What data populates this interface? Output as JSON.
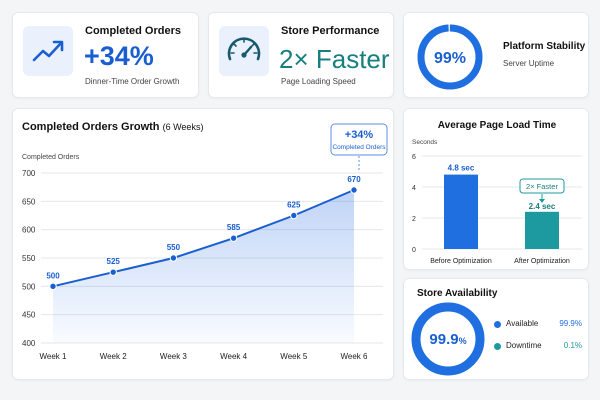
{
  "kpis": {
    "completed": {
      "title": "Completed Orders",
      "value": "+34%",
      "sub": "Dinner-Time Order Growth",
      "icon": "trending-up-icon"
    },
    "performance": {
      "title": "Store Performance",
      "value": "2× Faster",
      "sub": "Page Loading Speed",
      "icon": "speedometer-icon"
    },
    "stability": {
      "title": "Platform Stability",
      "value": "99%",
      "sub": "Server Uptime",
      "percent": 99
    }
  },
  "growth": {
    "title": "Completed Orders Growth",
    "title_suffix": "(6 Weeks)",
    "ylabel": "Completed Orders",
    "callout_value": "+34%",
    "callout_label": "Completed Orders"
  },
  "load": {
    "title": "Average Page Load Time",
    "ylabel": "Seconds",
    "badge": "2× Faster"
  },
  "availability": {
    "title": "Store Availability",
    "value": "99.9",
    "unit": "%",
    "legend": [
      {
        "label": "Available",
        "value": "99.9%",
        "color": "#1f6fe0"
      },
      {
        "label": "Downtime",
        "value": "0.1%",
        "color": "#1c9aa0"
      }
    ]
  },
  "chart_data": [
    {
      "type": "line",
      "title": "Completed Orders Growth (6 Weeks)",
      "ylabel": "Completed Orders",
      "categories": [
        "Week 1",
        "Week 2",
        "Week 3",
        "Week 4",
        "Week 5",
        "Week 6"
      ],
      "values": [
        500,
        525,
        550,
        585,
        625,
        670
      ],
      "data_labels": [
        "500",
        "525",
        "550",
        "585",
        "625",
        "670"
      ],
      "ylim": [
        400,
        700
      ],
      "yticks": [
        400,
        450,
        500,
        550,
        600,
        650,
        700
      ],
      "grid": true,
      "color": "#1a5fd0"
    },
    {
      "type": "bar",
      "title": "Average Page Load Time",
      "ylabel": "Seconds",
      "categories": [
        "Before Optimization",
        "After Optimization"
      ],
      "values": [
        4.8,
        2.4
      ],
      "data_labels": [
        "4.8 sec",
        "2.4 sec"
      ],
      "colors": [
        "#1f6fe0",
        "#1c9aa0"
      ],
      "ylim": [
        0,
        6
      ],
      "yticks": [
        0,
        2,
        4,
        6
      ],
      "grid": true
    },
    {
      "type": "pie",
      "title": "Store Availability",
      "categories": [
        "Available",
        "Downtime"
      ],
      "values": [
        99.9,
        0.1
      ],
      "colors": [
        "#1f6fe0",
        "#1c9aa0"
      ]
    }
  ]
}
